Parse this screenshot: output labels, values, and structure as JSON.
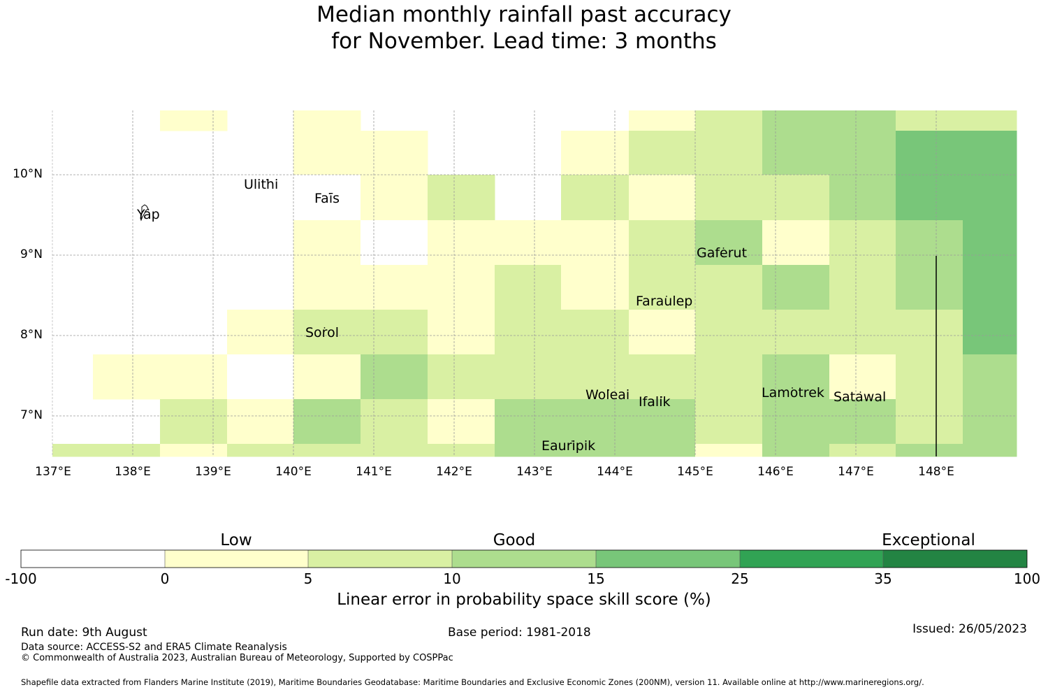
{
  "title_line1": "Median monthly rainfall past accuracy",
  "title_line2": "for November. Lead time: 3 months",
  "map": {
    "lon_range": [
      137.0,
      149.0
    ],
    "lat_range": [
      6.5,
      10.8
    ],
    "lon_ticks": [
      "137°E",
      "138°E",
      "139°E",
      "140°E",
      "141°E",
      "142°E",
      "143°E",
      "144°E",
      "145°E",
      "146°E",
      "147°E",
      "148°E"
    ],
    "lat_ticks": [
      "10°N",
      "9°N",
      "8°N",
      "7°N"
    ],
    "islands": [
      {
        "name": "Ulithi",
        "lon": 139.75,
        "lat": 10.0
      },
      {
        "name": "Yap",
        "lon": 138.15,
        "lat": 9.5
      },
      {
        "name": "Faīs",
        "lon": 140.5,
        "lat": 9.75
      },
      {
        "name": "Gaferut",
        "lon": 145.4,
        "lat": 9.2
      },
      {
        "name": "Faraulep",
        "lon": 144.5,
        "lat": 8.55
      },
      {
        "name": "Sorol",
        "lon": 140.4,
        "lat": 8.1
      },
      {
        "name": "Woleai",
        "lon": 143.9,
        "lat": 7.35
      },
      {
        "name": "Ifalik",
        "lon": 144.45,
        "lat": 7.25
      },
      {
        "name": "Lamotrek",
        "lon": 146.3,
        "lat": 7.45
      },
      {
        "name": "Satawal",
        "lon": 147.05,
        "lat": 7.35
      },
      {
        "name": "Eauripik",
        "lon": 143.1,
        "lat": 6.7
      }
    ],
    "skill_grid_note": "category index per cell: -1 none, 0 white(-100..0), 1 (0..5), 2 (5..10), 3 (10..15), 4 (15..25)"
  },
  "chart_data": {
    "type": "heatmap",
    "x_centers_lon": [
      137.0,
      137.83,
      138.67,
      139.5,
      140.33,
      141.17,
      142.0,
      142.83,
      143.67,
      144.5,
      145.33,
      146.17,
      147.0,
      147.83,
      148.67
    ],
    "y_rows_lat_top": [
      10.8,
      10.55,
      10.0,
      9.45,
      8.9,
      8.35,
      7.8,
      7.25,
      6.7
    ],
    "cells": [
      [
        -1,
        -1,
        1,
        -1,
        1,
        -1,
        -1,
        -1,
        -1,
        1,
        2,
        3,
        3,
        2,
        2
      ],
      [
        -1,
        -1,
        -1,
        -1,
        1,
        1,
        -1,
        -1,
        1,
        2,
        2,
        3,
        3,
        4,
        4
      ],
      [
        -1,
        -1,
        -1,
        -1,
        0,
        1,
        2,
        -1,
        2,
        1,
        2,
        2,
        3,
        4,
        4
      ],
      [
        -1,
        -1,
        -1,
        -1,
        1,
        0,
        1,
        1,
        1,
        2,
        3,
        1,
        2,
        3,
        4
      ],
      [
        -1,
        -1,
        -1,
        -1,
        1,
        1,
        1,
        2,
        1,
        2,
        2,
        3,
        2,
        3,
        4
      ],
      [
        -1,
        -1,
        -1,
        1,
        2,
        2,
        1,
        2,
        2,
        1,
        2,
        2,
        2,
        2,
        4
      ],
      [
        -1,
        1,
        1,
        0,
        1,
        3,
        2,
        2,
        2,
        2,
        2,
        3,
        1,
        2,
        3
      ],
      [
        -1,
        -1,
        2,
        1,
        3,
        2,
        1,
        3,
        3,
        3,
        2,
        3,
        3,
        2,
        3
      ],
      [
        2,
        2,
        1,
        2,
        2,
        2,
        2,
        3,
        3,
        3,
        1,
        3,
        2,
        3,
        3
      ]
    ],
    "legend_categories": [
      "Low",
      "Good",
      "Exceptional"
    ],
    "legend_ticks": [
      "-100",
      "0",
      "5",
      "10",
      "15",
      "25",
      "35",
      "100"
    ],
    "legend_colors": [
      "#ffffff",
      "#ffffcc",
      "#d9f0a3",
      "#addd8e",
      "#78c679",
      "#31a354",
      "#238443"
    ],
    "legend_label": "Linear error in probability space skill score (%)"
  },
  "footer": {
    "run_date": "Run date: 9th August",
    "base_period": "Base period: 1981-2018",
    "issued": "Issued: 26/05/2023",
    "data_source": "Data source: ACCESS-S2 and ERA5 Climate Reanalysis",
    "copyright": "© Commonwealth of Australia 2023, Australian Bureau of Meteorology, Supported by COSPPac",
    "shapefile": "Shapefile data extracted from Flanders Marine Institute (2019), Maritime Boundaries Geodatabase: Maritime Boundaries and Exclusive Economic Zones (200NM), version 11. Available online at http://www.marineregions.org/."
  }
}
